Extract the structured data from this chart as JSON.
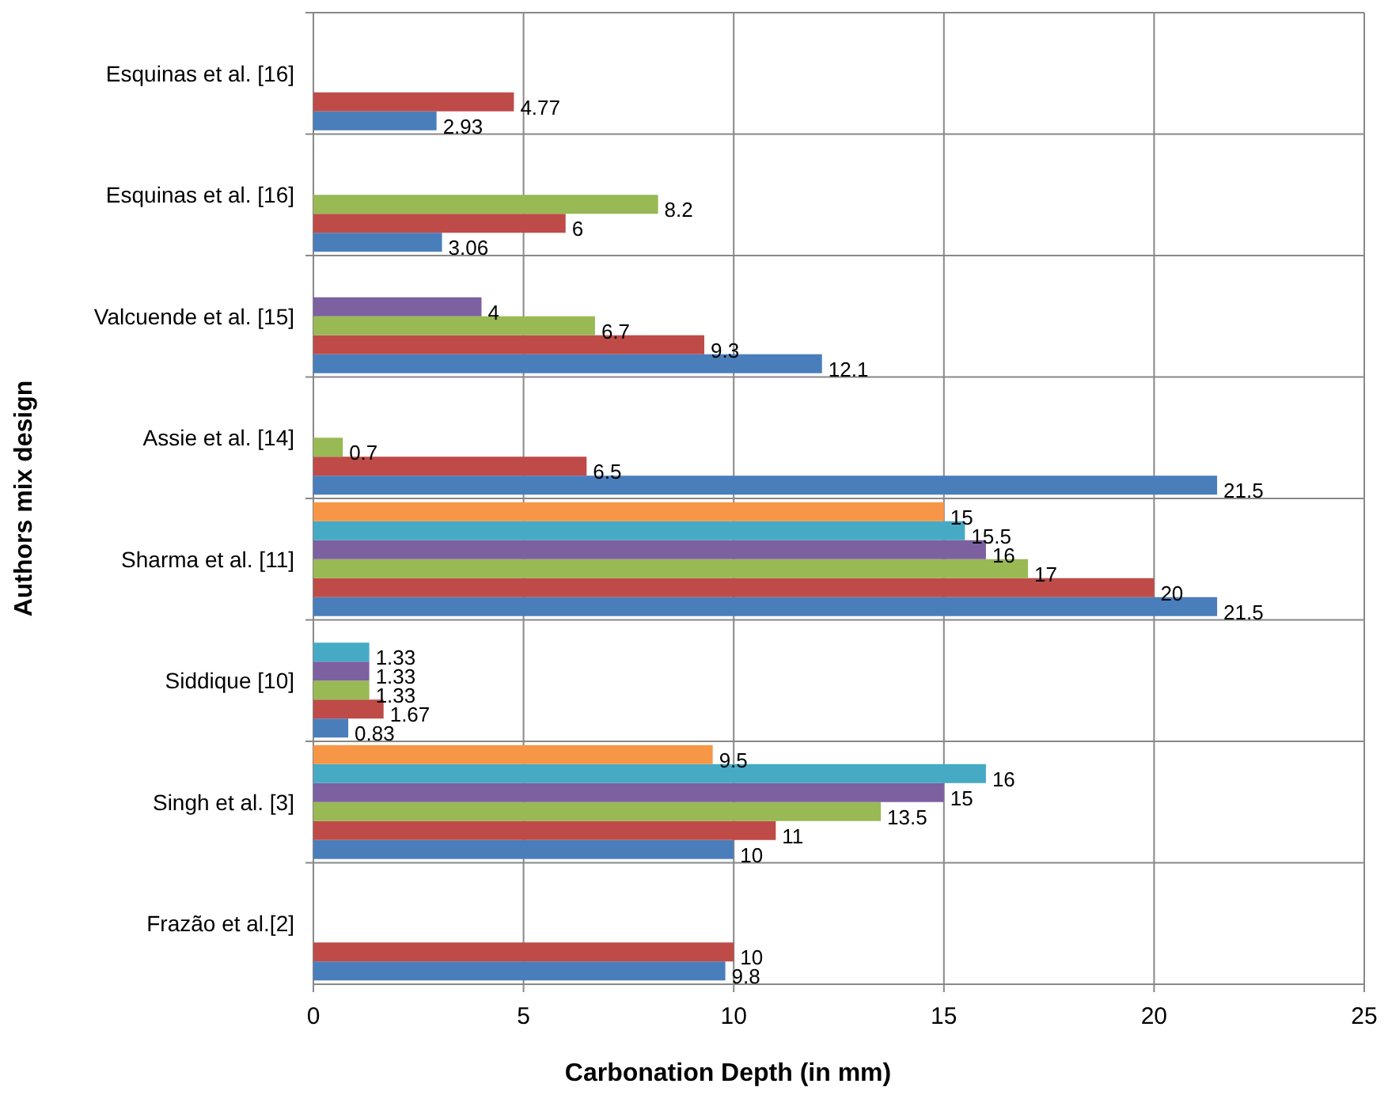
{
  "chart_data": {
    "type": "bar",
    "orientation": "horizontal",
    "ylabel": "Authors mix design",
    "xlabel": "Carbonation Depth (in mm)",
    "categories": [
      "Esquinas et al. [16]",
      "Esquinas et al. [16]",
      "Valcuende et al. [15]",
      "Assie et al. [14]",
      "Sharma et al. [11]",
      "Siddique [10]",
      "Singh et al. [3]",
      "Frazão et al.[2]"
    ],
    "series": [
      {
        "color": "#4a7ebb",
        "values": [
          2.93,
          3.06,
          12.1,
          21.5,
          21.5,
          0.83,
          10,
          9.8
        ]
      },
      {
        "color": "#be4b48",
        "values": [
          4.77,
          6,
          9.3,
          6.5,
          20,
          1.67,
          11,
          10
        ]
      },
      {
        "color": "#98b954",
        "values": [
          null,
          8.2,
          6.7,
          0.7,
          17,
          1.33,
          13.5,
          null
        ]
      },
      {
        "color": "#7d60a0",
        "values": [
          null,
          null,
          4,
          null,
          16,
          1.33,
          15,
          null
        ]
      },
      {
        "color": "#46aac5",
        "values": [
          null,
          null,
          null,
          null,
          15.5,
          1.33,
          16,
          null
        ]
      },
      {
        "color": "#f79646",
        "values": [
          null,
          null,
          null,
          null,
          15,
          null,
          9.5,
          null
        ]
      }
    ],
    "xlim": [
      0,
      25
    ],
    "xticks": [
      0,
      5,
      10,
      15,
      20,
      25
    ],
    "grid": true,
    "data_labels": true
  }
}
